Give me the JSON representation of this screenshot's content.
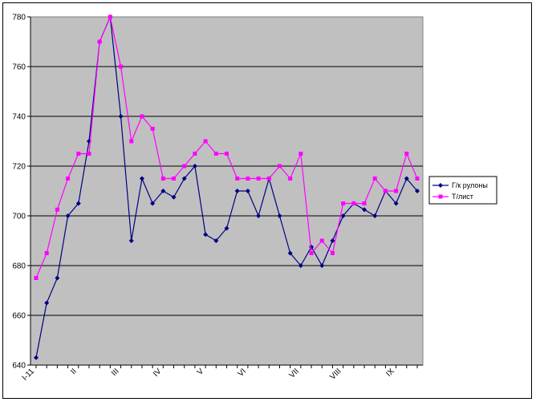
{
  "chart_data": {
    "type": "line",
    "title": "",
    "xlabel": "",
    "ylabel": "",
    "ylim": [
      640,
      780
    ],
    "y_ticks": [
      "640",
      "660",
      "680",
      "700",
      "720",
      "740",
      "760",
      "780"
    ],
    "x_tick_labels": [
      {
        "label": "I-11",
        "index": 0
      },
      {
        "label": "II",
        "index": 4
      },
      {
        "label": "III",
        "index": 8
      },
      {
        "label": "IV",
        "index": 12
      },
      {
        "label": "V",
        "index": 16
      },
      {
        "label": "VI",
        "index": 20
      },
      {
        "label": "VII",
        "index": 25
      },
      {
        "label": "VIII",
        "index": 29
      },
      {
        "label": "IX",
        "index": 34
      }
    ],
    "grid": true,
    "legend_position": "right",
    "background": "#C0C0C0",
    "series": [
      {
        "name": "Г/к рулоны",
        "color": "#000080",
        "marker": "diamond",
        "values": [
          643,
          665,
          675,
          700,
          705,
          730,
          770,
          780,
          740,
          690,
          715,
          705,
          710,
          707.5,
          715,
          720,
          692.5,
          690,
          695,
          710,
          710,
          700,
          715,
          700,
          685,
          680,
          687.5,
          680,
          690,
          700,
          705,
          702.5,
          700,
          710,
          705,
          715,
          710
        ]
      },
      {
        "name": "Т/лист",
        "color": "#FF00FF",
        "marker": "square",
        "values": [
          675,
          685,
          702.5,
          715,
          725,
          725,
          770,
          780,
          760,
          730,
          740,
          735,
          715,
          715,
          720,
          725,
          730,
          725,
          725,
          715,
          715,
          715,
          715,
          720,
          715,
          725,
          685,
          690,
          685,
          705,
          705,
          705,
          715,
          710,
          710,
          725,
          715
        ]
      }
    ]
  }
}
